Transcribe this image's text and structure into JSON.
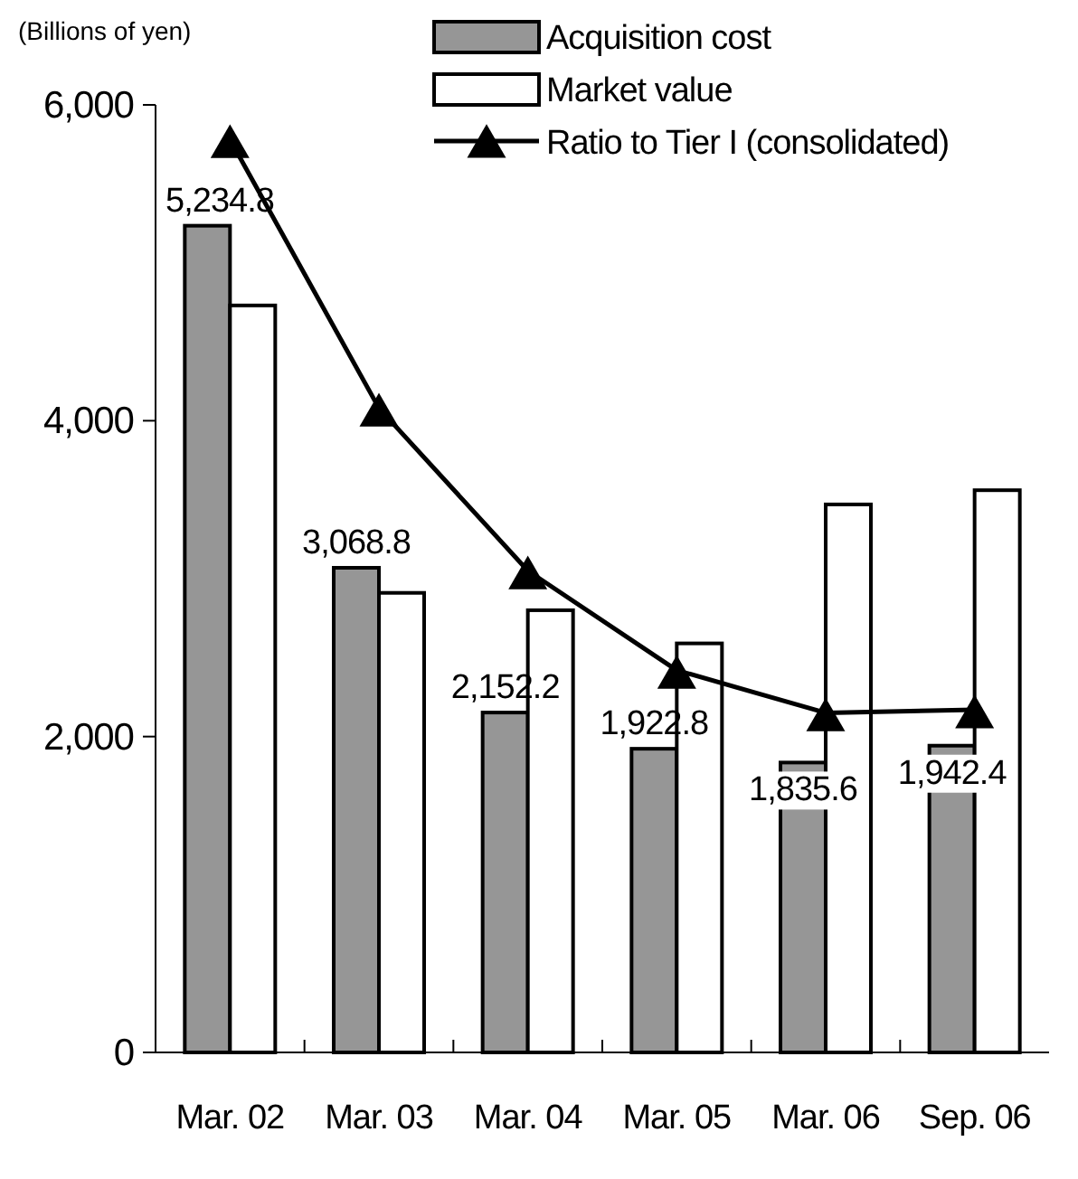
{
  "chart_data": {
    "type": "bar",
    "ylabel": "(Billions of yen)",
    "categories": [
      "Mar. 02",
      "Mar. 03",
      "Mar. 04",
      "Mar. 05",
      "Mar. 06",
      "Sep. 06"
    ],
    "series": [
      {
        "name": "Acquisition cost",
        "color": "#969696",
        "values": [
          5234.8,
          3068.8,
          2152.2,
          1922.8,
          1835.6,
          1942.4
        ],
        "value_labels": [
          "5,234.8",
          "3,068.8",
          "2,152.2",
          "1,922.8",
          "1,835.6",
          "1,942.4"
        ]
      },
      {
        "name": "Market value",
        "color": "#ffffff",
        "values": [
          4730,
          2910,
          2800,
          2590,
          3470,
          3560
        ]
      },
      {
        "name": "Ratio to Tier I (consolidated)",
        "type": "line",
        "color": "#000000",
        "marker": "triangle",
        "values": [
          5780,
          4080,
          3050,
          2420,
          2150,
          2170
        ]
      }
    ],
    "ylim": [
      0,
      6000
    ],
    "yticks": [
      {
        "value": 0,
        "label": "0"
      },
      {
        "value": 2000,
        "label": "2,000"
      },
      {
        "value": 4000,
        "label": "4,000"
      },
      {
        "value": 6000,
        "label": "6,000"
      }
    ],
    "grid": false,
    "legend": "top right"
  }
}
